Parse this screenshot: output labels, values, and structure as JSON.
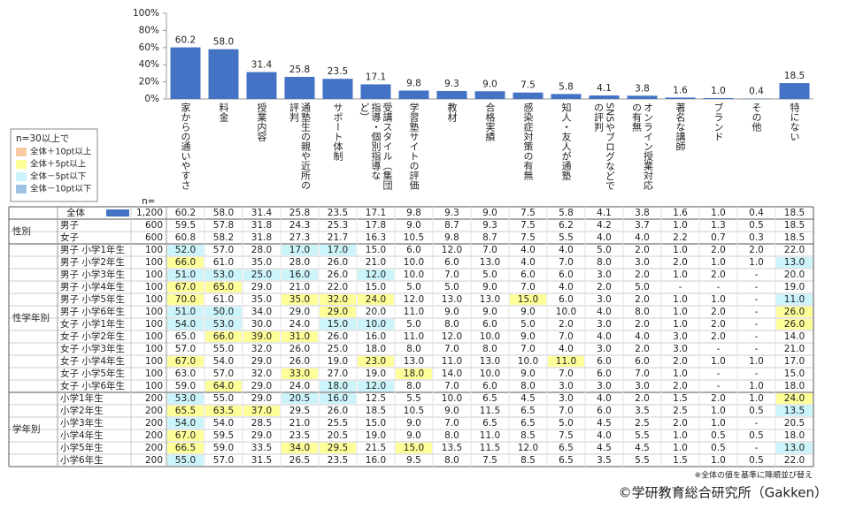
{
  "chart_data": {
    "type": "bar",
    "categories": [
      "家からの通いやすさ",
      "料金",
      "授業内容",
      "通塾生の親や近所の評判",
      "サポート体制",
      "受講スタイル（集団指導・個別指導など）",
      "学習塾サイトの評価",
      "教材",
      "合格実績",
      "感染症対策の有無",
      "知人・友人が通塾",
      "SNSやブログなどでの評判",
      "オンライン授業対応の有無",
      "著名な講師",
      "ブランド",
      "その他",
      "特にない"
    ],
    "values": [
      60.2,
      58.0,
      31.4,
      25.8,
      23.5,
      17.1,
      9.8,
      9.3,
      9.0,
      7.5,
      5.8,
      4.1,
      3.8,
      1.6,
      1.0,
      0.4,
      18.5
    ],
    "value_labels": [
      "60.2",
      "58.0",
      "31.4",
      "25.8",
      "23.5",
      "17.1",
      "9.8",
      "9.3",
      "9.0",
      "7.5",
      "5.8",
      "4.1",
      "3.8",
      "1.6",
      "1.0",
      "0.4",
      "18.5"
    ],
    "color": "#4472c4",
    "ylim": [
      0,
      100
    ],
    "yticks": [
      {
        "value": 0,
        "label": "0%"
      },
      {
        "value": 20,
        "label": "20%"
      },
      {
        "value": 40,
        "label": "40%"
      },
      {
        "value": 60,
        "label": "60%"
      },
      {
        "value": 80,
        "label": "80%"
      },
      {
        "value": 100,
        "label": "100%"
      }
    ]
  },
  "legend": {
    "title": "n=30以上で",
    "items": [
      {
        "label": "全体＋10pt以上",
        "color": "#f8cba3"
      },
      {
        "label": "全体＋5pt以上",
        "color": "#ffff99"
      },
      {
        "label": "全体－5pt以下",
        "color": "#ccf4fb"
      },
      {
        "label": "全体－10pt以下",
        "color": "#9dc3e6"
      }
    ]
  },
  "table": {
    "n_header": "n=",
    "total": {
      "label": "全体",
      "n": "1,200",
      "cells": [
        "60.2",
        "58.0",
        "31.4",
        "25.8",
        "23.5",
        "17.1",
        "9.8",
        "9.3",
        "9.0",
        "7.5",
        "5.8",
        "4.1",
        "3.8",
        "1.6",
        "1.0",
        "0.4",
        "18.5"
      ]
    },
    "groups": [
      {
        "label": "性別",
        "rows": [
          {
            "label": "男子",
            "n": "600",
            "cells": [
              "59.5",
              "57.8",
              "31.8",
              "24.3",
              "25.3",
              "17.8",
              "9.0",
              "8.7",
              "9.3",
              "7.5",
              "6.2",
              "4.2",
              "3.7",
              "1.0",
              "1.3",
              "0.5",
              "18.5"
            ]
          },
          {
            "label": "女子",
            "n": "600",
            "cells": [
              "60.8",
              "58.2",
              "31.8",
              "27.3",
              "21.7",
              "16.3",
              "10.5",
              "9.8",
              "8.7",
              "7.5",
              "5.5",
              "4.0",
              "4.0",
              "2.2",
              "0.7",
              "0.3",
              "18.5"
            ]
          }
        ]
      },
      {
        "label": "性学年別",
        "rows": [
          {
            "label": "男子 小学1年生",
            "n": "100",
            "cells": [
              "52.0",
              "57.0",
              "28.0",
              "17.0",
              "17.0",
              "15.0",
              "6.0",
              "12.0",
              "7.0",
              "4.0",
              "4.0",
              "5.0",
              "2.0",
              "1.0",
              "2.0",
              "2.0",
              "22.0"
            ],
            "highlight": {
              "0": 2,
              "3": 2,
              "4": 2
            }
          },
          {
            "label": "男子 小学2年生",
            "n": "100",
            "cells": [
              "66.0",
              "61.0",
              "35.0",
              "28.0",
              "26.0",
              "21.0",
              "10.0",
              "6.0",
              "13.0",
              "4.0",
              "7.0",
              "8.0",
              "3.0",
              "2.0",
              "1.0",
              "1.0",
              "13.0"
            ],
            "highlight": {
              "0": 1,
              "16": 2
            }
          },
          {
            "label": "男子 小学3年生",
            "n": "100",
            "cells": [
              "51.0",
              "53.0",
              "25.0",
              "16.0",
              "26.0",
              "12.0",
              "10.0",
              "7.0",
              "5.0",
              "6.0",
              "6.0",
              "3.0",
              "2.0",
              "1.0",
              "2.0",
              "-",
              "20.0"
            ],
            "highlight": {
              "0": 2,
              "1": 2,
              "2": 2,
              "3": 2,
              "5": 2
            }
          },
          {
            "label": "男子 小学4年生",
            "n": "100",
            "cells": [
              "67.0",
              "65.0",
              "29.0",
              "21.0",
              "22.0",
              "15.0",
              "5.0",
              "5.0",
              "9.0",
              "7.0",
              "4.0",
              "2.0",
              "5.0",
              "-",
              "-",
              "-",
              "19.0"
            ],
            "highlight": {
              "0": 1,
              "1": 1
            }
          },
          {
            "label": "男子 小学5年生",
            "n": "100",
            "cells": [
              "70.0",
              "61.0",
              "35.0",
              "35.0",
              "32.0",
              "24.0",
              "12.0",
              "13.0",
              "13.0",
              "15.0",
              "6.0",
              "3.0",
              "2.0",
              "1.0",
              "1.0",
              "-",
              "11.0"
            ],
            "highlight": {
              "0": 1,
              "3": 1,
              "4": 1,
              "5": 1,
              "9": 1,
              "16": 2
            }
          },
          {
            "label": "男子 小学6年生",
            "n": "100",
            "cells": [
              "51.0",
              "50.0",
              "34.0",
              "29.0",
              "29.0",
              "20.0",
              "11.0",
              "9.0",
              "9.0",
              "9.0",
              "10.0",
              "4.0",
              "8.0",
              "1.0",
              "2.0",
              "-",
              "26.0"
            ],
            "highlight": {
              "0": 2,
              "1": 2,
              "4": 1,
              "16": 1
            }
          },
          {
            "label": "女子 小学1年生",
            "n": "100",
            "cells": [
              "54.0",
              "53.0",
              "30.0",
              "24.0",
              "15.0",
              "10.0",
              "5.0",
              "8.0",
              "6.0",
              "5.0",
              "2.0",
              "3.0",
              "2.0",
              "1.0",
              "2.0",
              "-",
              "26.0"
            ],
            "highlight": {
              "0": 2,
              "1": 2,
              "4": 2,
              "5": 2,
              "16": 1
            }
          },
          {
            "label": "女子 小学2年生",
            "n": "100",
            "cells": [
              "65.0",
              "66.0",
              "39.0",
              "31.0",
              "26.0",
              "16.0",
              "11.0",
              "12.0",
              "10.0",
              "9.0",
              "7.0",
              "4.0",
              "4.0",
              "3.0",
              "2.0",
              "-",
              "14.0"
            ],
            "highlight": {
              "1": 1,
              "2": 1,
              "3": 1
            }
          },
          {
            "label": "女子 小学3年生",
            "n": "100",
            "cells": [
              "57.0",
              "55.0",
              "32.0",
              "26.0",
              "25.0",
              "18.0",
              "8.0",
              "7.0",
              "8.0",
              "7.0",
              "4.0",
              "3.0",
              "2.0",
              "3.0",
              "-",
              "-",
              "21.0"
            ]
          },
          {
            "label": "女子 小学4年生",
            "n": "100",
            "cells": [
              "67.0",
              "54.0",
              "29.0",
              "26.0",
              "19.0",
              "23.0",
              "13.0",
              "11.0",
              "13.0",
              "10.0",
              "11.0",
              "6.0",
              "6.0",
              "2.0",
              "1.0",
              "1.0",
              "17.0"
            ],
            "highlight": {
              "0": 1,
              "5": 1,
              "10": 1
            }
          },
          {
            "label": "女子 小学5年生",
            "n": "100",
            "cells": [
              "63.0",
              "57.0",
              "32.0",
              "33.0",
              "27.0",
              "19.0",
              "18.0",
              "14.0",
              "10.0",
              "9.0",
              "7.0",
              "6.0",
              "7.0",
              "1.0",
              "-",
              "-",
              "15.0"
            ],
            "highlight": {
              "3": 1,
              "6": 1
            }
          },
          {
            "label": "女子 小学6年生",
            "n": "100",
            "cells": [
              "59.0",
              "64.0",
              "29.0",
              "24.0",
              "18.0",
              "12.0",
              "8.0",
              "7.0",
              "6.0",
              "8.0",
              "3.0",
              "3.0",
              "3.0",
              "2.0",
              "-",
              "1.0",
              "18.0"
            ],
            "highlight": {
              "1": 1,
              "4": 2,
              "5": 2
            }
          }
        ]
      },
      {
        "label": "学年別",
        "rows": [
          {
            "label": "小学1年生",
            "n": "200",
            "cells": [
              "53.0",
              "55.0",
              "29.0",
              "20.5",
              "16.0",
              "12.5",
              "5.5",
              "10.0",
              "6.5",
              "4.5",
              "3.0",
              "4.0",
              "2.0",
              "1.5",
              "2.0",
              "1.0",
              "24.0"
            ],
            "highlight": {
              "0": 2,
              "3": 2,
              "4": 2,
              "16": 1
            }
          },
          {
            "label": "小学2年生",
            "n": "200",
            "cells": [
              "65.5",
              "63.5",
              "37.0",
              "29.5",
              "26.0",
              "18.5",
              "10.5",
              "9.0",
              "11.5",
              "6.5",
              "7.0",
              "6.0",
              "3.5",
              "2.5",
              "1.0",
              "0.5",
              "13.5"
            ],
            "highlight": {
              "0": 1,
              "1": 1,
              "2": 1,
              "16": 2
            }
          },
          {
            "label": "小学3年生",
            "n": "200",
            "cells": [
              "54.0",
              "54.0",
              "28.5",
              "21.0",
              "25.5",
              "15.0",
              "9.0",
              "7.0",
              "6.5",
              "6.5",
              "5.0",
              "4.5",
              "2.5",
              "2.0",
              "1.0",
              "-",
              "20.5"
            ],
            "highlight": {
              "0": 2
            }
          },
          {
            "label": "小学4年生",
            "n": "200",
            "cells": [
              "67.0",
              "59.5",
              "29.0",
              "23.5",
              "20.5",
              "19.0",
              "9.0",
              "8.0",
              "11.0",
              "8.5",
              "7.5",
              "4.0",
              "5.5",
              "1.0",
              "0.5",
              "0.5",
              "18.0"
            ],
            "highlight": {
              "0": 1
            }
          },
          {
            "label": "小学5年生",
            "n": "200",
            "cells": [
              "66.5",
              "59.0",
              "33.5",
              "34.0",
              "29.5",
              "21.5",
              "15.0",
              "13.5",
              "11.5",
              "12.0",
              "6.5",
              "4.5",
              "4.5",
              "1.0",
              "0.5",
              "-",
              "13.0"
            ],
            "highlight": {
              "0": 1,
              "3": 1,
              "4": 1,
              "6": 1,
              "16": 2
            }
          },
          {
            "label": "小学6年生",
            "n": "200",
            "cells": [
              "55.0",
              "57.0",
              "31.5",
              "26.5",
              "23.5",
              "16.0",
              "9.5",
              "8.0",
              "7.5",
              "8.5",
              "6.5",
              "3.5",
              "5.5",
              "1.5",
              "1.0",
              "0.5",
              "22.0"
            ],
            "highlight": {
              "0": 2
            }
          }
        ]
      }
    ]
  },
  "footnote": "※全体の値を基準に降順並び替え",
  "credit": "©学研教育総合研究所（Gakken）"
}
